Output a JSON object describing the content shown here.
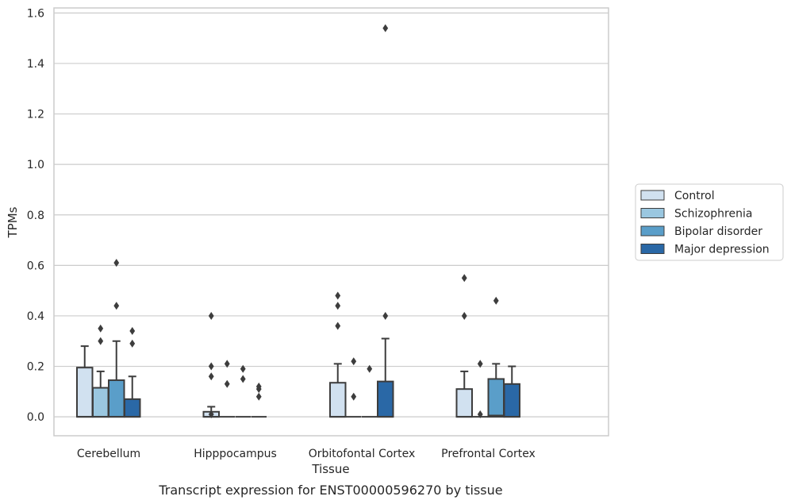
{
  "chart_data": {
    "type": "box",
    "caption": "Transcript expression for ENST00000596270 by tissue",
    "xlabel": "Tissue",
    "ylabel": "TPMs",
    "ylim": [
      -0.075,
      1.62
    ],
    "yticks": [
      0.0,
      0.2,
      0.4,
      0.6,
      0.8,
      1.0,
      1.2,
      1.4,
      1.6
    ],
    "ytick_labels": [
      "0.0",
      "0.2",
      "0.4",
      "0.6",
      "0.8",
      "1.0",
      "1.2",
      "1.4",
      "1.6"
    ],
    "grid": "horizontal",
    "legend_position": "right",
    "categories": [
      "Cerebellum",
      "Hipppocampus",
      "Orbitofontal Cortex",
      "Prefrontal Cortex"
    ],
    "series": [
      {
        "name": "Control",
        "color": "#d1e1f0",
        "boxes": [
          {
            "min": 0.0,
            "q1": 0.0,
            "median": 0.0,
            "q3": 0.195,
            "max": 0.28,
            "outliers": []
          },
          {
            "min": 0.0,
            "q1": 0.0,
            "median": 0.0,
            "q3": 0.02,
            "max": 0.04,
            "outliers": [
              0.4,
              0.2,
              0.16,
              0.01
            ]
          },
          {
            "min": 0.0,
            "q1": 0.0,
            "median": 0.0,
            "q3": 0.135,
            "max": 0.21,
            "outliers": [
              0.48,
              0.44,
              0.36
            ]
          },
          {
            "min": 0.0,
            "q1": 0.0,
            "median": 0.0,
            "q3": 0.11,
            "max": 0.18,
            "outliers": [
              0.55,
              0.4
            ]
          }
        ]
      },
      {
        "name": "Schizophrenia",
        "color": "#9ac7e0",
        "boxes": [
          {
            "min": 0.0,
            "q1": 0.0,
            "median": 0.0,
            "q3": 0.115,
            "max": 0.18,
            "outliers": [
              0.35,
              0.3
            ]
          },
          {
            "min": 0.0,
            "q1": 0.0,
            "median": 0.0,
            "q3": 0.0,
            "max": 0.0,
            "outliers": [
              0.21,
              0.13
            ]
          },
          {
            "min": 0.0,
            "q1": 0.0,
            "median": 0.0,
            "q3": 0.0,
            "max": 0.0,
            "outliers": [
              0.22,
              0.08
            ]
          },
          {
            "min": 0.0,
            "q1": 0.0,
            "median": 0.0,
            "q3": 0.0,
            "max": 0.0,
            "outliers": [
              0.21,
              0.01
            ]
          }
        ]
      },
      {
        "name": "Bipolar disorder",
        "color": "#5a9ec9",
        "boxes": [
          {
            "min": 0.0,
            "q1": 0.0,
            "median": 0.0,
            "q3": 0.145,
            "max": 0.3,
            "outliers": [
              0.61,
              0.44
            ]
          },
          {
            "min": 0.0,
            "q1": 0.0,
            "median": 0.0,
            "q3": 0.0,
            "max": 0.0,
            "outliers": [
              0.19,
              0.15
            ]
          },
          {
            "min": 0.0,
            "q1": 0.0,
            "median": 0.0,
            "q3": 0.0,
            "max": 0.0,
            "outliers": [
              0.19
            ]
          },
          {
            "min": 0.0,
            "q1": 0.0,
            "median": 0.005,
            "q3": 0.15,
            "max": 0.21,
            "outliers": [
              0.46
            ]
          }
        ]
      },
      {
        "name": "Major depression",
        "color": "#2a68a6",
        "boxes": [
          {
            "min": 0.0,
            "q1": 0.0,
            "median": 0.0,
            "q3": 0.07,
            "max": 0.16,
            "outliers": [
              0.34,
              0.29
            ]
          },
          {
            "min": 0.0,
            "q1": 0.0,
            "median": 0.0,
            "q3": 0.0,
            "max": 0.0,
            "outliers": [
              0.12,
              0.11,
              0.08
            ]
          },
          {
            "min": 0.0,
            "q1": 0.0,
            "median": 0.0,
            "q3": 0.14,
            "max": 0.31,
            "outliers": [
              1.54,
              0.4
            ]
          },
          {
            "min": 0.0,
            "q1": 0.0,
            "median": 0.0,
            "q3": 0.13,
            "max": 0.2,
            "outliers": []
          }
        ]
      }
    ]
  }
}
